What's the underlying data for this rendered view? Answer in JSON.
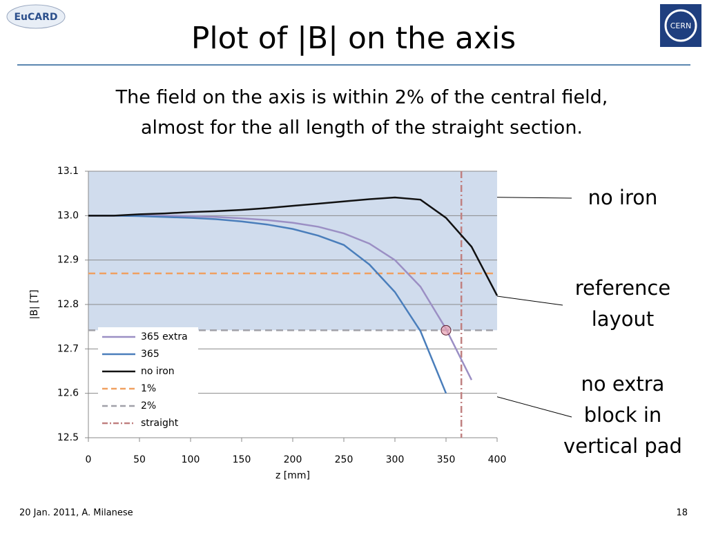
{
  "header": {
    "title": "Plot of |B| on the axis",
    "logo_left": "EuCARD",
    "logo_right": "CERN"
  },
  "subtitle_lines": [
    "The field on the axis is within 2% of the central field,",
    "almost for the all length of the straight section."
  ],
  "annotations": [
    {
      "lines": [
        "no iron"
      ]
    },
    {
      "lines": [
        "reference",
        "layout"
      ]
    },
    {
      "lines": [
        "no extra",
        "block in",
        "vertical pad"
      ]
    }
  ],
  "footer": {
    "left": "20 Jan. 2011, A. Milanese",
    "page": "18"
  },
  "chart_data": {
    "type": "line",
    "x_label": "z [mm]",
    "y_label": "|B|  [T]",
    "xlim": [
      0,
      400
    ],
    "ylim": [
      12.5,
      13.1
    ],
    "xticks": [
      0,
      50,
      100,
      150,
      200,
      250,
      300,
      350,
      400
    ],
    "yticks": [
      {
        "value": 12.5,
        "label": "12.5"
      },
      12.6,
      12.7,
      12.8,
      12.9,
      {
        "value": 13.0,
        "label": "13.0"
      },
      13.1
    ],
    "grid": true,
    "x": [
      0,
      25,
      50,
      75,
      100,
      125,
      150,
      175,
      200,
      225,
      250,
      275,
      300,
      325,
      350,
      375,
      400
    ],
    "series": [
      {
        "name": "365 extra",
        "color": "#9b8fc4",
        "values": [
          13.0,
          13.0,
          13.0,
          13.0,
          12.999,
          12.997,
          12.994,
          12.99,
          12.984,
          12.975,
          12.96,
          12.937,
          12.9,
          12.84,
          12.745,
          12.63,
          null
        ]
      },
      {
        "name": "365",
        "color": "#4a7ebb",
        "values": [
          13.0,
          13.0,
          12.999,
          12.997,
          12.995,
          12.992,
          12.987,
          12.98,
          12.97,
          12.955,
          12.934,
          12.89,
          12.828,
          12.74,
          12.6,
          null,
          null
        ]
      },
      {
        "name": "no iron",
        "color": "#111111",
        "values": [
          13.0,
          13.0,
          13.003,
          13.005,
          13.008,
          13.01,
          13.013,
          13.017,
          13.022,
          13.027,
          13.032,
          13.037,
          13.041,
          13.036,
          12.995,
          12.93,
          12.82
        ]
      }
    ],
    "reference_lines": [
      {
        "name": "1%",
        "color": "#f0a060",
        "value": 12.87
      },
      {
        "name": "2%",
        "color": "#a0a0a8",
        "value": 12.742
      }
    ],
    "vertical_line": {
      "name": "straight",
      "color": "#c08080",
      "x": 365
    },
    "highlight": {
      "x": 350,
      "y": 12.742
    },
    "legend": "lower left"
  }
}
